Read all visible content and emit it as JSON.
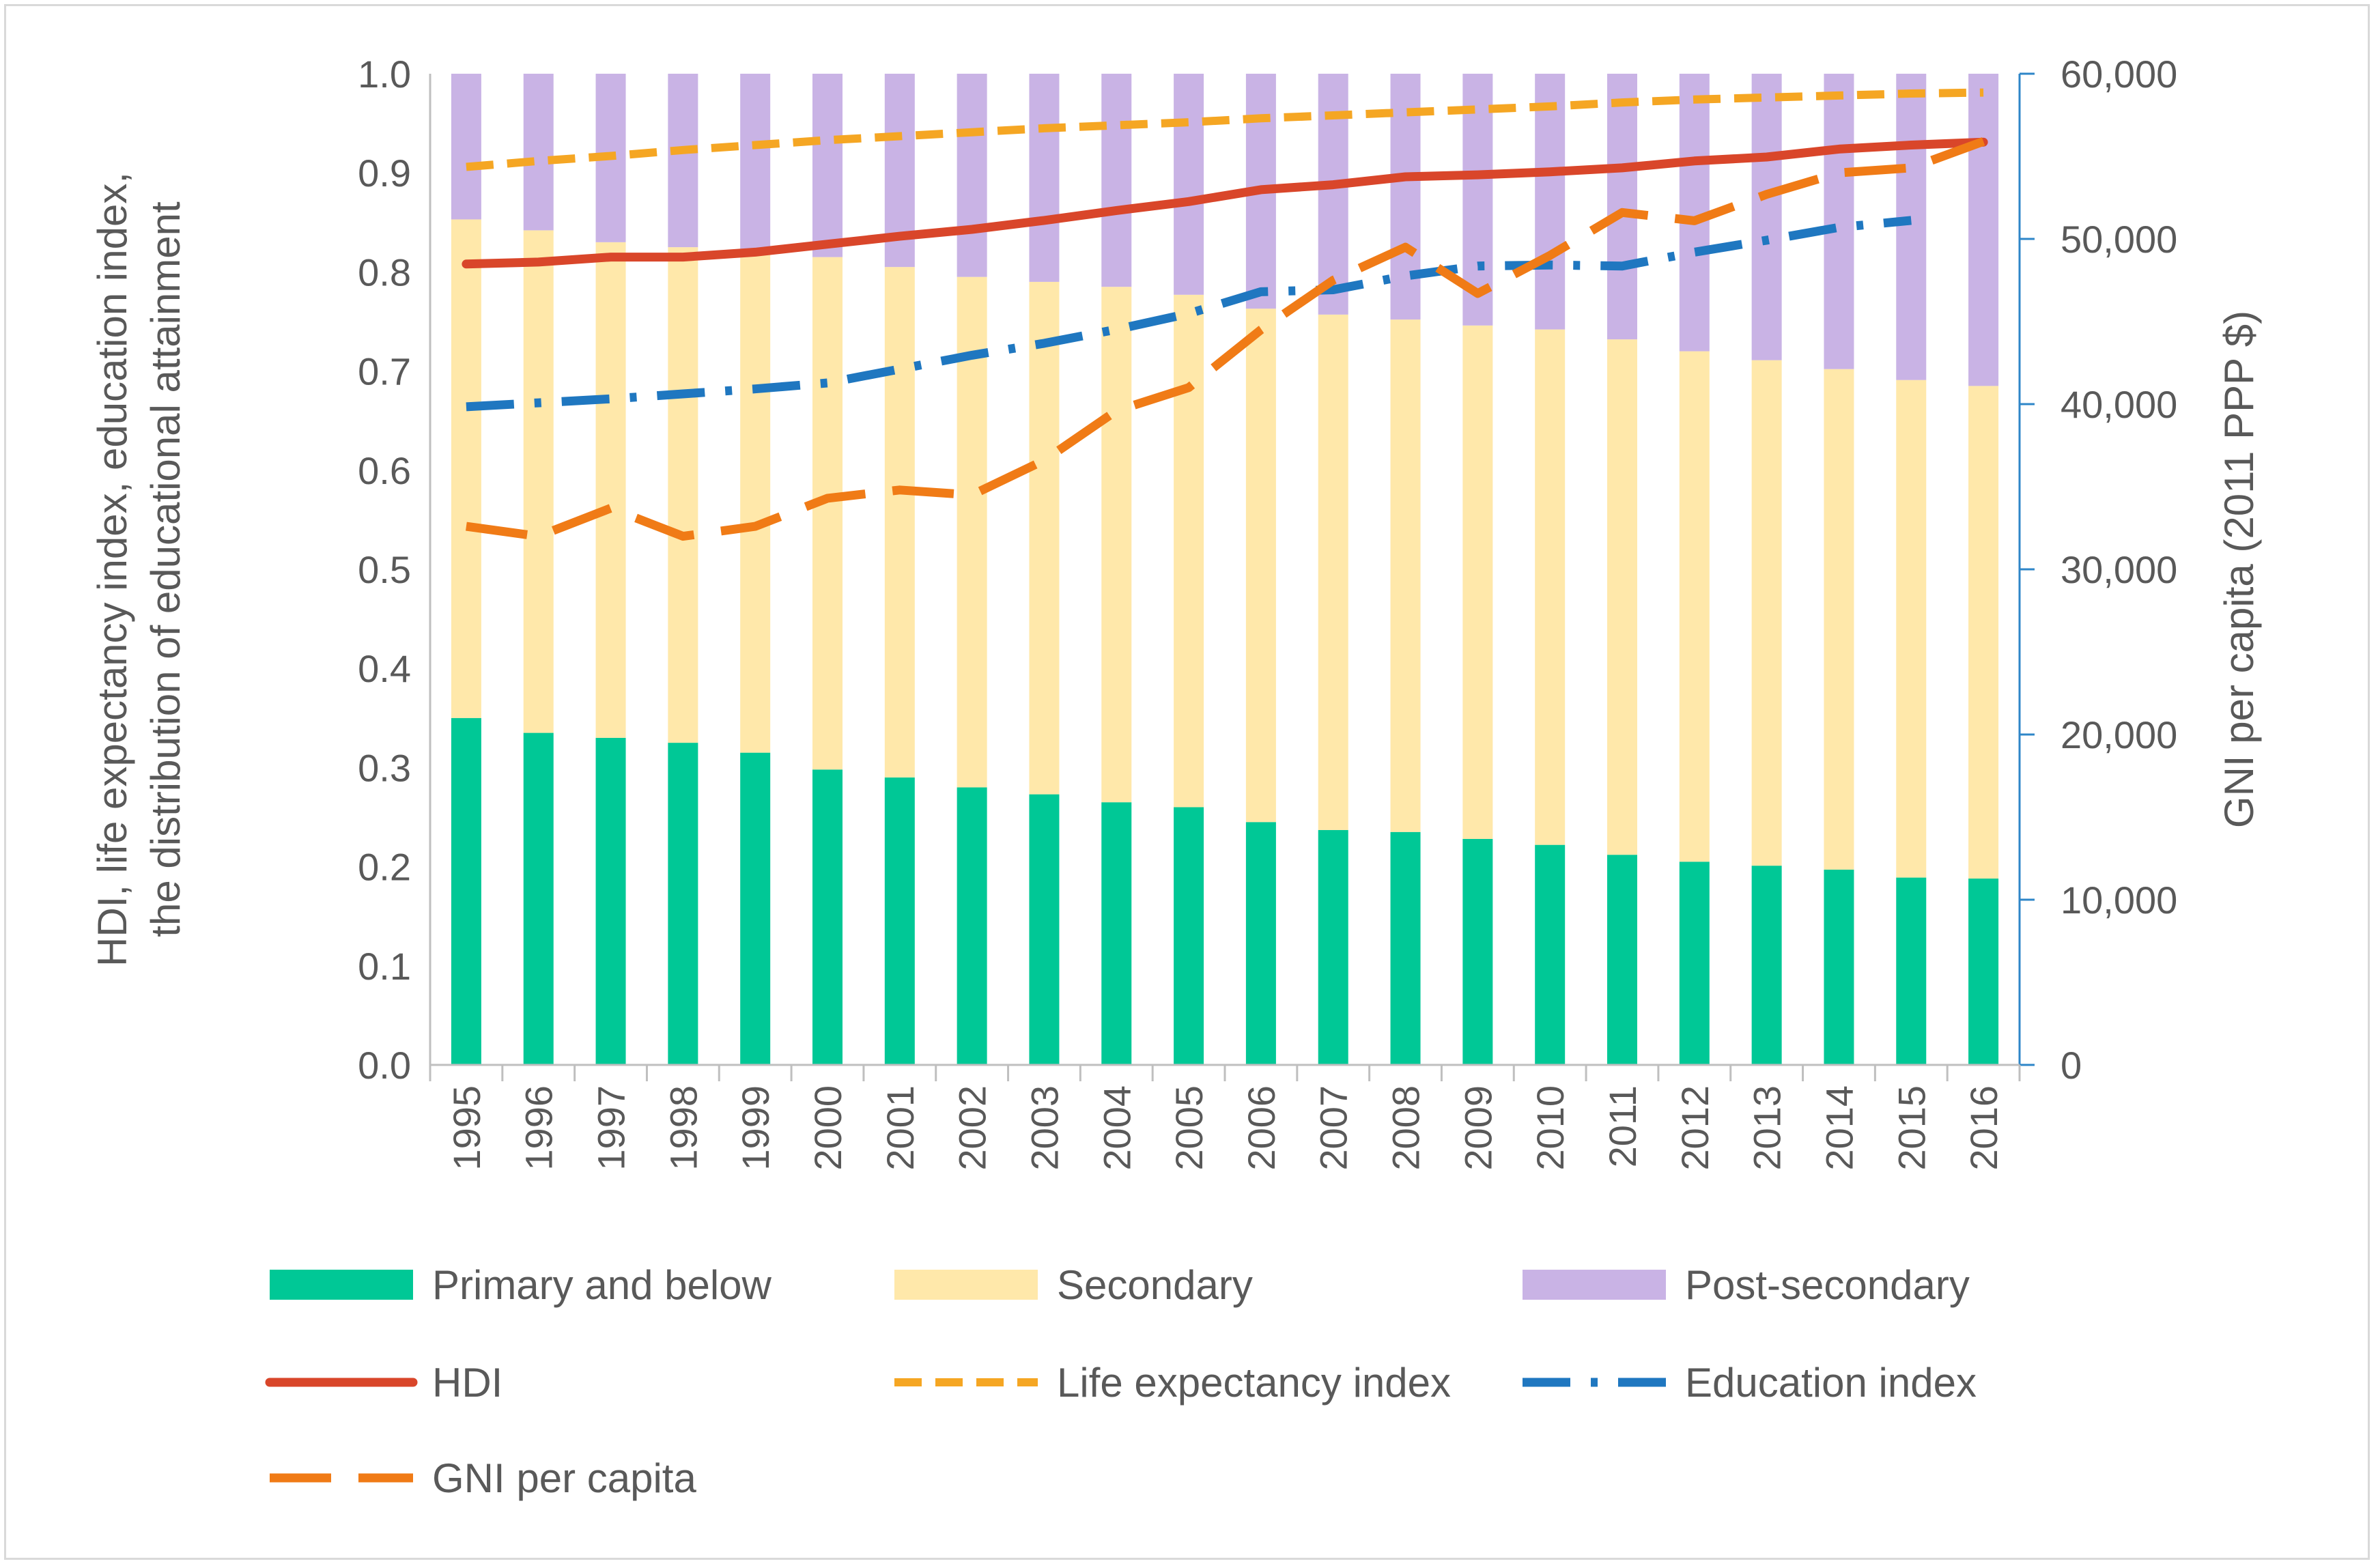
{
  "chart_data": {
    "type": "bar",
    "stacked": true,
    "categories": [
      "1995",
      "1996",
      "1997",
      "1998",
      "1999",
      "2000",
      "2001",
      "2002",
      "2003",
      "2004",
      "2005",
      "2006",
      "2007",
      "2008",
      "2009",
      "2010",
      "2011",
      "2012",
      "2013",
      "2014",
      "2015",
      "2016"
    ],
    "series": [
      {
        "name": "Primary and below",
        "kind": "bar",
        "axis": "left",
        "color": "#00c896",
        "values": [
          0.35,
          0.335,
          0.33,
          0.325,
          0.315,
          0.298,
          0.29,
          0.28,
          0.273,
          0.265,
          0.26,
          0.245,
          0.237,
          0.235,
          0.228,
          0.222,
          0.212,
          0.205,
          0.201,
          0.197,
          0.189,
          0.188
        ]
      },
      {
        "name": "Secondary",
        "kind": "bar",
        "axis": "left",
        "color": "#ffe8aa",
        "values": [
          0.503,
          0.507,
          0.5,
          0.5,
          0.503,
          0.517,
          0.515,
          0.515,
          0.517,
          0.52,
          0.517,
          0.518,
          0.52,
          0.517,
          0.518,
          0.52,
          0.52,
          0.515,
          0.51,
          0.505,
          0.502,
          0.497
        ]
      },
      {
        "name": "Post-secondary",
        "kind": "bar",
        "axis": "left",
        "color": "#c9b3e5",
        "values": [
          0.147,
          0.158,
          0.17,
          0.175,
          0.182,
          0.185,
          0.195,
          0.205,
          0.21,
          0.215,
          0.223,
          0.237,
          0.243,
          0.248,
          0.254,
          0.258,
          0.268,
          0.28,
          0.289,
          0.298,
          0.309,
          0.315
        ]
      },
      {
        "name": "HDI",
        "kind": "line",
        "style": "solid",
        "axis": "left",
        "color": "#d9462a",
        "values": [
          0.808,
          0.81,
          0.815,
          0.815,
          0.82,
          0.828,
          0.836,
          0.843,
          0.852,
          0.862,
          0.871,
          0.883,
          0.888,
          0.896,
          0.898,
          0.901,
          0.905,
          0.912,
          0.916,
          0.924,
          0.928,
          0.931
        ]
      },
      {
        "name": "Life expectancy index",
        "kind": "line",
        "style": "dash",
        "axis": "left",
        "color": "#f5a623",
        "values": [
          0.906,
          0.912,
          0.917,
          0.923,
          0.928,
          0.933,
          0.937,
          0.941,
          0.945,
          0.948,
          0.951,
          0.955,
          0.958,
          0.961,
          0.964,
          0.967,
          0.971,
          0.974,
          0.976,
          0.978,
          0.98,
          0.981
        ]
      },
      {
        "name": "Education index",
        "kind": "line",
        "style": "dashdot",
        "axis": "left",
        "color": "#1f77c0",
        "values": [
          0.664,
          0.668,
          0.672,
          0.677,
          0.682,
          0.688,
          0.702,
          0.716,
          0.728,
          0.742,
          0.758,
          0.78,
          0.782,
          0.796,
          0.806,
          0.807,
          0.806,
          0.82,
          0.832,
          0.845,
          0.852,
          null
        ]
      },
      {
        "name": "GNI per capita",
        "kind": "line",
        "style": "longdash",
        "axis": "right",
        "color": "#f07b16",
        "values": [
          32600,
          32000,
          33700,
          32000,
          32600,
          34300,
          34800,
          34500,
          36600,
          39600,
          41000,
          44500,
          47500,
          49500,
          46700,
          49000,
          51600,
          51100,
          52700,
          54000,
          54300,
          55900
        ]
      }
    ],
    "legend": [
      "Primary and below",
      "Secondary",
      "Post-secondary",
      "HDI",
      "Life expectancy index",
      "Education index",
      "GNI per capita"
    ],
    "legend_position": "bottom",
    "ylabel": "HDI, life expectancy index, education index, the distribution of educational attainment",
    "ylabel_lines": [
      "HDI, life expectancy index, education index,",
      "the distribution of educational attainment"
    ],
    "y2label": "GNI per capita (2011 PPP $)",
    "ylim": [
      0,
      1
    ],
    "y2lim": [
      0,
      60000
    ],
    "yticks": [
      "0.0",
      "0.1",
      "0.2",
      "0.3",
      "0.4",
      "0.5",
      "0.6",
      "0.7",
      "0.8",
      "0.9",
      "1.0"
    ],
    "y2ticks": [
      "0",
      "10,000",
      "20,000",
      "30,000",
      "40,000",
      "50,000",
      "60,000"
    ],
    "grid": false
  }
}
